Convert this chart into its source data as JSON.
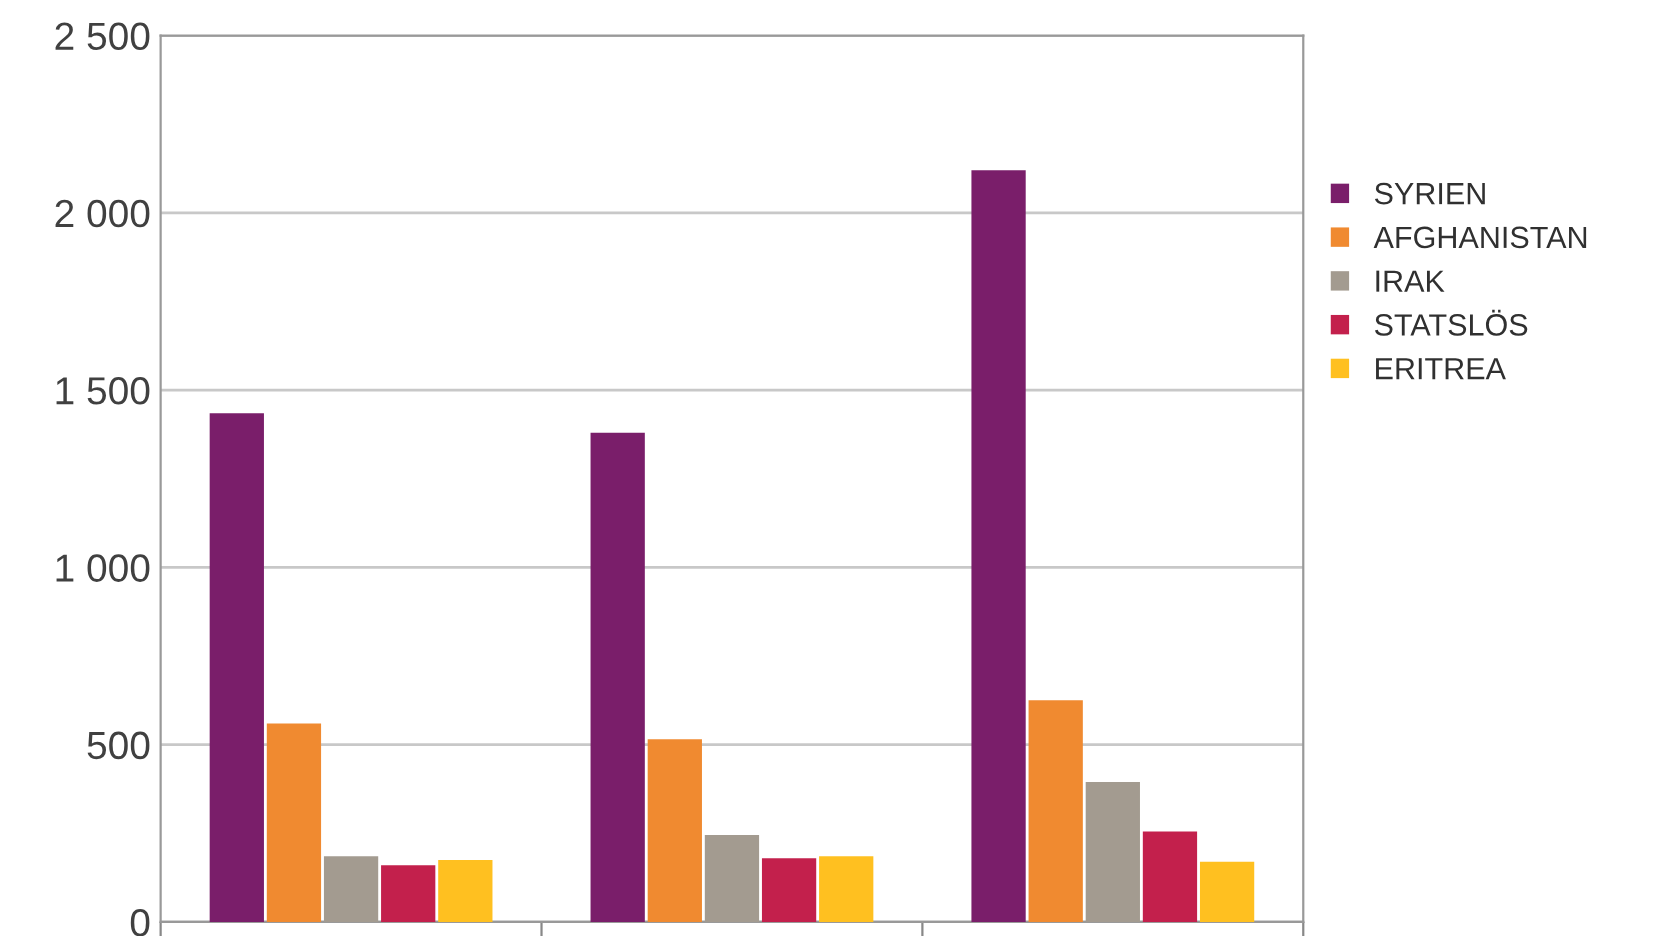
{
  "chart_data": {
    "type": "bar",
    "categories": [
      null,
      null,
      null
    ],
    "series": [
      {
        "name": "SYRIEN",
        "color": "#7a1e6a",
        "values": [
          1435,
          1380,
          2120
        ]
      },
      {
        "name": "AFGHANISTAN",
        "color": "#f08a30",
        "values": [
          560,
          515,
          625
        ]
      },
      {
        "name": "IRAK",
        "color": "#a39b90",
        "values": [
          185,
          245,
          395
        ]
      },
      {
        "name": "STATSLÖS",
        "color": "#c3204c",
        "values": [
          160,
          180,
          255
        ]
      },
      {
        "name": "ERITREA",
        "color": "#ffc020",
        "values": [
          175,
          185,
          170
        ]
      }
    ],
    "ylim": [
      0,
      2500
    ],
    "yticks": [
      {
        "value": 0,
        "label": "0"
      },
      {
        "value": 500,
        "label": "500"
      },
      {
        "value": 1000,
        "label": "1 000"
      },
      {
        "value": 1500,
        "label": "1 500"
      },
      {
        "value": 2000,
        "label": "2 000"
      },
      {
        "value": 2500,
        "label": "2 500"
      }
    ],
    "grid": "y",
    "legend": "right"
  }
}
